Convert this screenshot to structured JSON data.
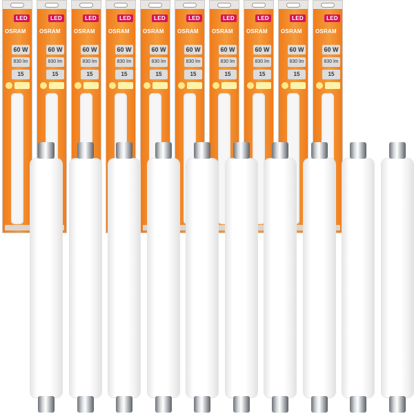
{
  "product": {
    "brand": "OSRAM",
    "technology_badge": "LED",
    "wattage_equivalent": "60 W",
    "luminous_flux": "830 lm",
    "lifetime": "15",
    "colors": {
      "packaging_orange": "#f07c1c",
      "badge_magenta": "#d4145a",
      "tube_white": "#ffffff",
      "cap_metal": "#b8bcc0"
    },
    "pack_count": 10,
    "tube_count": 10
  }
}
